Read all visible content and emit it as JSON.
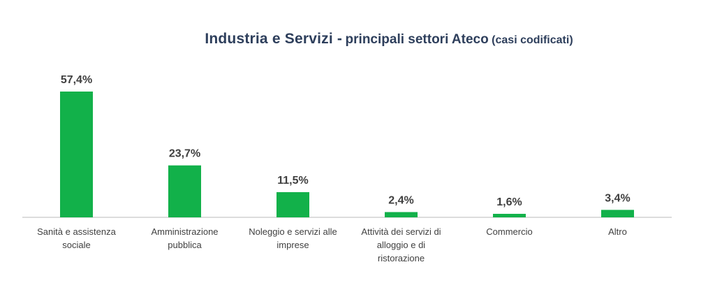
{
  "chart_data": {
    "type": "bar",
    "title_main": "Industria e Servizi -",
    "title_sub": "principali settori Ateco",
    "title_note": "(casi codificati)",
    "categories": [
      [
        "Sanità e assistenza",
        "sociale"
      ],
      [
        "Amministrazione",
        "pubblica"
      ],
      [
        "Noleggio e servizi alle",
        "imprese"
      ],
      [
        "Attività dei servizi di",
        "alloggio e di",
        "ristorazione"
      ],
      [
        "Commercio"
      ],
      [
        "Altro"
      ]
    ],
    "values": [
      57.4,
      23.7,
      11.5,
      2.4,
      1.6,
      3.4
    ],
    "value_labels": [
      "57,4%",
      "23,7%",
      "11,5%",
      "2,4%",
      "1,6%",
      "3,4%"
    ],
    "ylim": [
      0,
      57.4
    ],
    "grid": false,
    "legend": "none",
    "bar_color": "#12b14a",
    "axis_color": "#d0d0d0",
    "label_color": "#404040",
    "title_color": "#2e3f5c"
  }
}
